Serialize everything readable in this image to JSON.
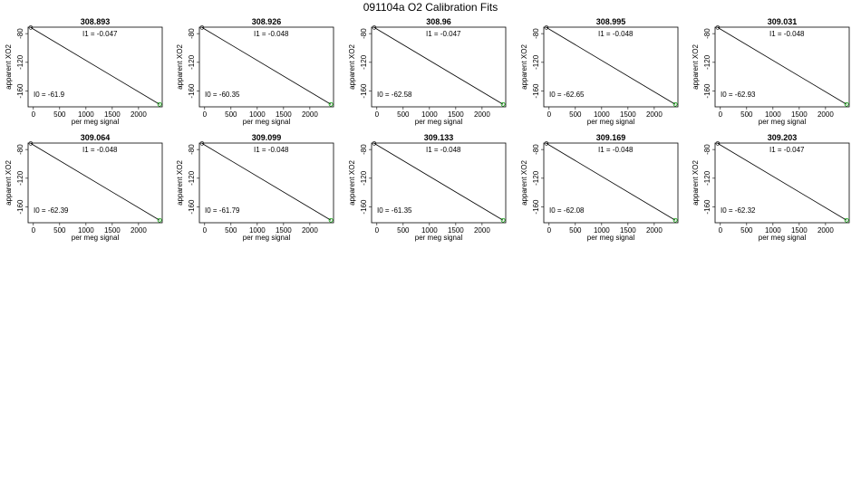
{
  "title": "091104a   O2 Calibration Fits",
  "colors": {
    "fit_line": "#000000",
    "points_low": "#000000",
    "points_high": "#00a000"
  },
  "chart_data": [
    {
      "type": "line",
      "title": "308.893",
      "xlabel": "per meg signal",
      "ylabel": "apparent XO2",
      "xlim": [
        -100,
        2450
      ],
      "ylim": [
        -182,
        -71
      ],
      "xticks": [
        0,
        500,
        1000,
        1500,
        2000
      ],
      "yticks": [
        -80,
        -120,
        -160
      ],
      "x": [
        -50,
        2400
      ],
      "y": [
        -71.5,
        -178.5
      ],
      "I1_label": "I1 =  -0.047",
      "I0_label": "I0 =  -61.9"
    },
    {
      "type": "line",
      "title": "308.926",
      "xlabel": "per meg signal",
      "ylabel": "apparent XO2",
      "xlim": [
        -100,
        2450
      ],
      "ylim": [
        -182,
        -71
      ],
      "xticks": [
        0,
        500,
        1000,
        1500,
        2000
      ],
      "yticks": [
        -80,
        -120,
        -160
      ],
      "x": [
        -50,
        2400
      ],
      "y": [
        -71.5,
        -178.5
      ],
      "I1_label": "I1 =  -0.048",
      "I0_label": "I0 =  -60.35"
    },
    {
      "type": "line",
      "title": "308.96",
      "xlabel": "per meg signal",
      "ylabel": "apparent XO2",
      "xlim": [
        -100,
        2450
      ],
      "ylim": [
        -182,
        -71
      ],
      "xticks": [
        0,
        500,
        1000,
        1500,
        2000
      ],
      "yticks": [
        -80,
        -120,
        -160
      ],
      "x": [
        -50,
        2400
      ],
      "y": [
        -71.5,
        -178.5
      ],
      "I1_label": "I1 =  -0.047",
      "I0_label": "I0 =  -62.58"
    },
    {
      "type": "line",
      "title": "308.995",
      "xlabel": "per meg signal",
      "ylabel": "apparent XO2",
      "xlim": [
        -100,
        2450
      ],
      "ylim": [
        -182,
        -71
      ],
      "xticks": [
        0,
        500,
        1000,
        1500,
        2000
      ],
      "yticks": [
        -80,
        -120,
        -160
      ],
      "x": [
        -50,
        2400
      ],
      "y": [
        -71.5,
        -178.5
      ],
      "I1_label": "I1 =  -0.048",
      "I0_label": "I0 =  -62.65"
    },
    {
      "type": "line",
      "title": "309.031",
      "xlabel": "per meg signal",
      "ylabel": "apparent XO2",
      "xlim": [
        -100,
        2450
      ],
      "ylim": [
        -182,
        -71
      ],
      "xticks": [
        0,
        500,
        1000,
        1500,
        2000
      ],
      "yticks": [
        -80,
        -120,
        -160
      ],
      "x": [
        -50,
        2400
      ],
      "y": [
        -71.5,
        -178.5
      ],
      "I1_label": "I1 =  -0.048",
      "I0_label": "I0 =  -62.93"
    },
    {
      "type": "line",
      "title": "309.064",
      "xlabel": "per meg signal",
      "ylabel": "apparent XO2",
      "xlim": [
        -100,
        2450
      ],
      "ylim": [
        -182,
        -71
      ],
      "xticks": [
        0,
        500,
        1000,
        1500,
        2000
      ],
      "yticks": [
        -80,
        -120,
        -160
      ],
      "x": [
        -50,
        2400
      ],
      "y": [
        -71.5,
        -178.5
      ],
      "I1_label": "I1 =  -0.048",
      "I0_label": "I0 =  -62.39"
    },
    {
      "type": "line",
      "title": "309.099",
      "xlabel": "per meg signal",
      "ylabel": "apparent XO2",
      "xlim": [
        -100,
        2450
      ],
      "ylim": [
        -182,
        -71
      ],
      "xticks": [
        0,
        500,
        1000,
        1500,
        2000
      ],
      "yticks": [
        -80,
        -120,
        -160
      ],
      "x": [
        -50,
        2400
      ],
      "y": [
        -71.5,
        -178.5
      ],
      "I1_label": "I1 =  -0.048",
      "I0_label": "I0 =  -61.79"
    },
    {
      "type": "line",
      "title": "309.133",
      "xlabel": "per meg signal",
      "ylabel": "apparent XO2",
      "xlim": [
        -100,
        2450
      ],
      "ylim": [
        -182,
        -71
      ],
      "xticks": [
        0,
        500,
        1000,
        1500,
        2000
      ],
      "yticks": [
        -80,
        -120,
        -160
      ],
      "x": [
        -50,
        2400
      ],
      "y": [
        -71.5,
        -178.5
      ],
      "I1_label": "I1 =  -0.048",
      "I0_label": "I0 =  -61.35"
    },
    {
      "type": "line",
      "title": "309.169",
      "xlabel": "per meg signal",
      "ylabel": "apparent XO2",
      "xlim": [
        -100,
        2450
      ],
      "ylim": [
        -182,
        -71
      ],
      "xticks": [
        0,
        500,
        1000,
        1500,
        2000
      ],
      "yticks": [
        -80,
        -120,
        -160
      ],
      "x": [
        -50,
        2400
      ],
      "y": [
        -71.5,
        -178.5
      ],
      "I1_label": "I1 =  -0.048",
      "I0_label": "I0 =  -62.08"
    },
    {
      "type": "line",
      "title": "309.203",
      "xlabel": "per meg signal",
      "ylabel": "apparent XO2",
      "xlim": [
        -100,
        2450
      ],
      "ylim": [
        -182,
        -71
      ],
      "xticks": [
        0,
        500,
        1000,
        1500,
        2000
      ],
      "yticks": [
        -80,
        -120,
        -160
      ],
      "x": [
        -50,
        2400
      ],
      "y": [
        -71.5,
        -178.5
      ],
      "I1_label": "I1 =  -0.047",
      "I0_label": "I0 =  -62.32"
    }
  ]
}
